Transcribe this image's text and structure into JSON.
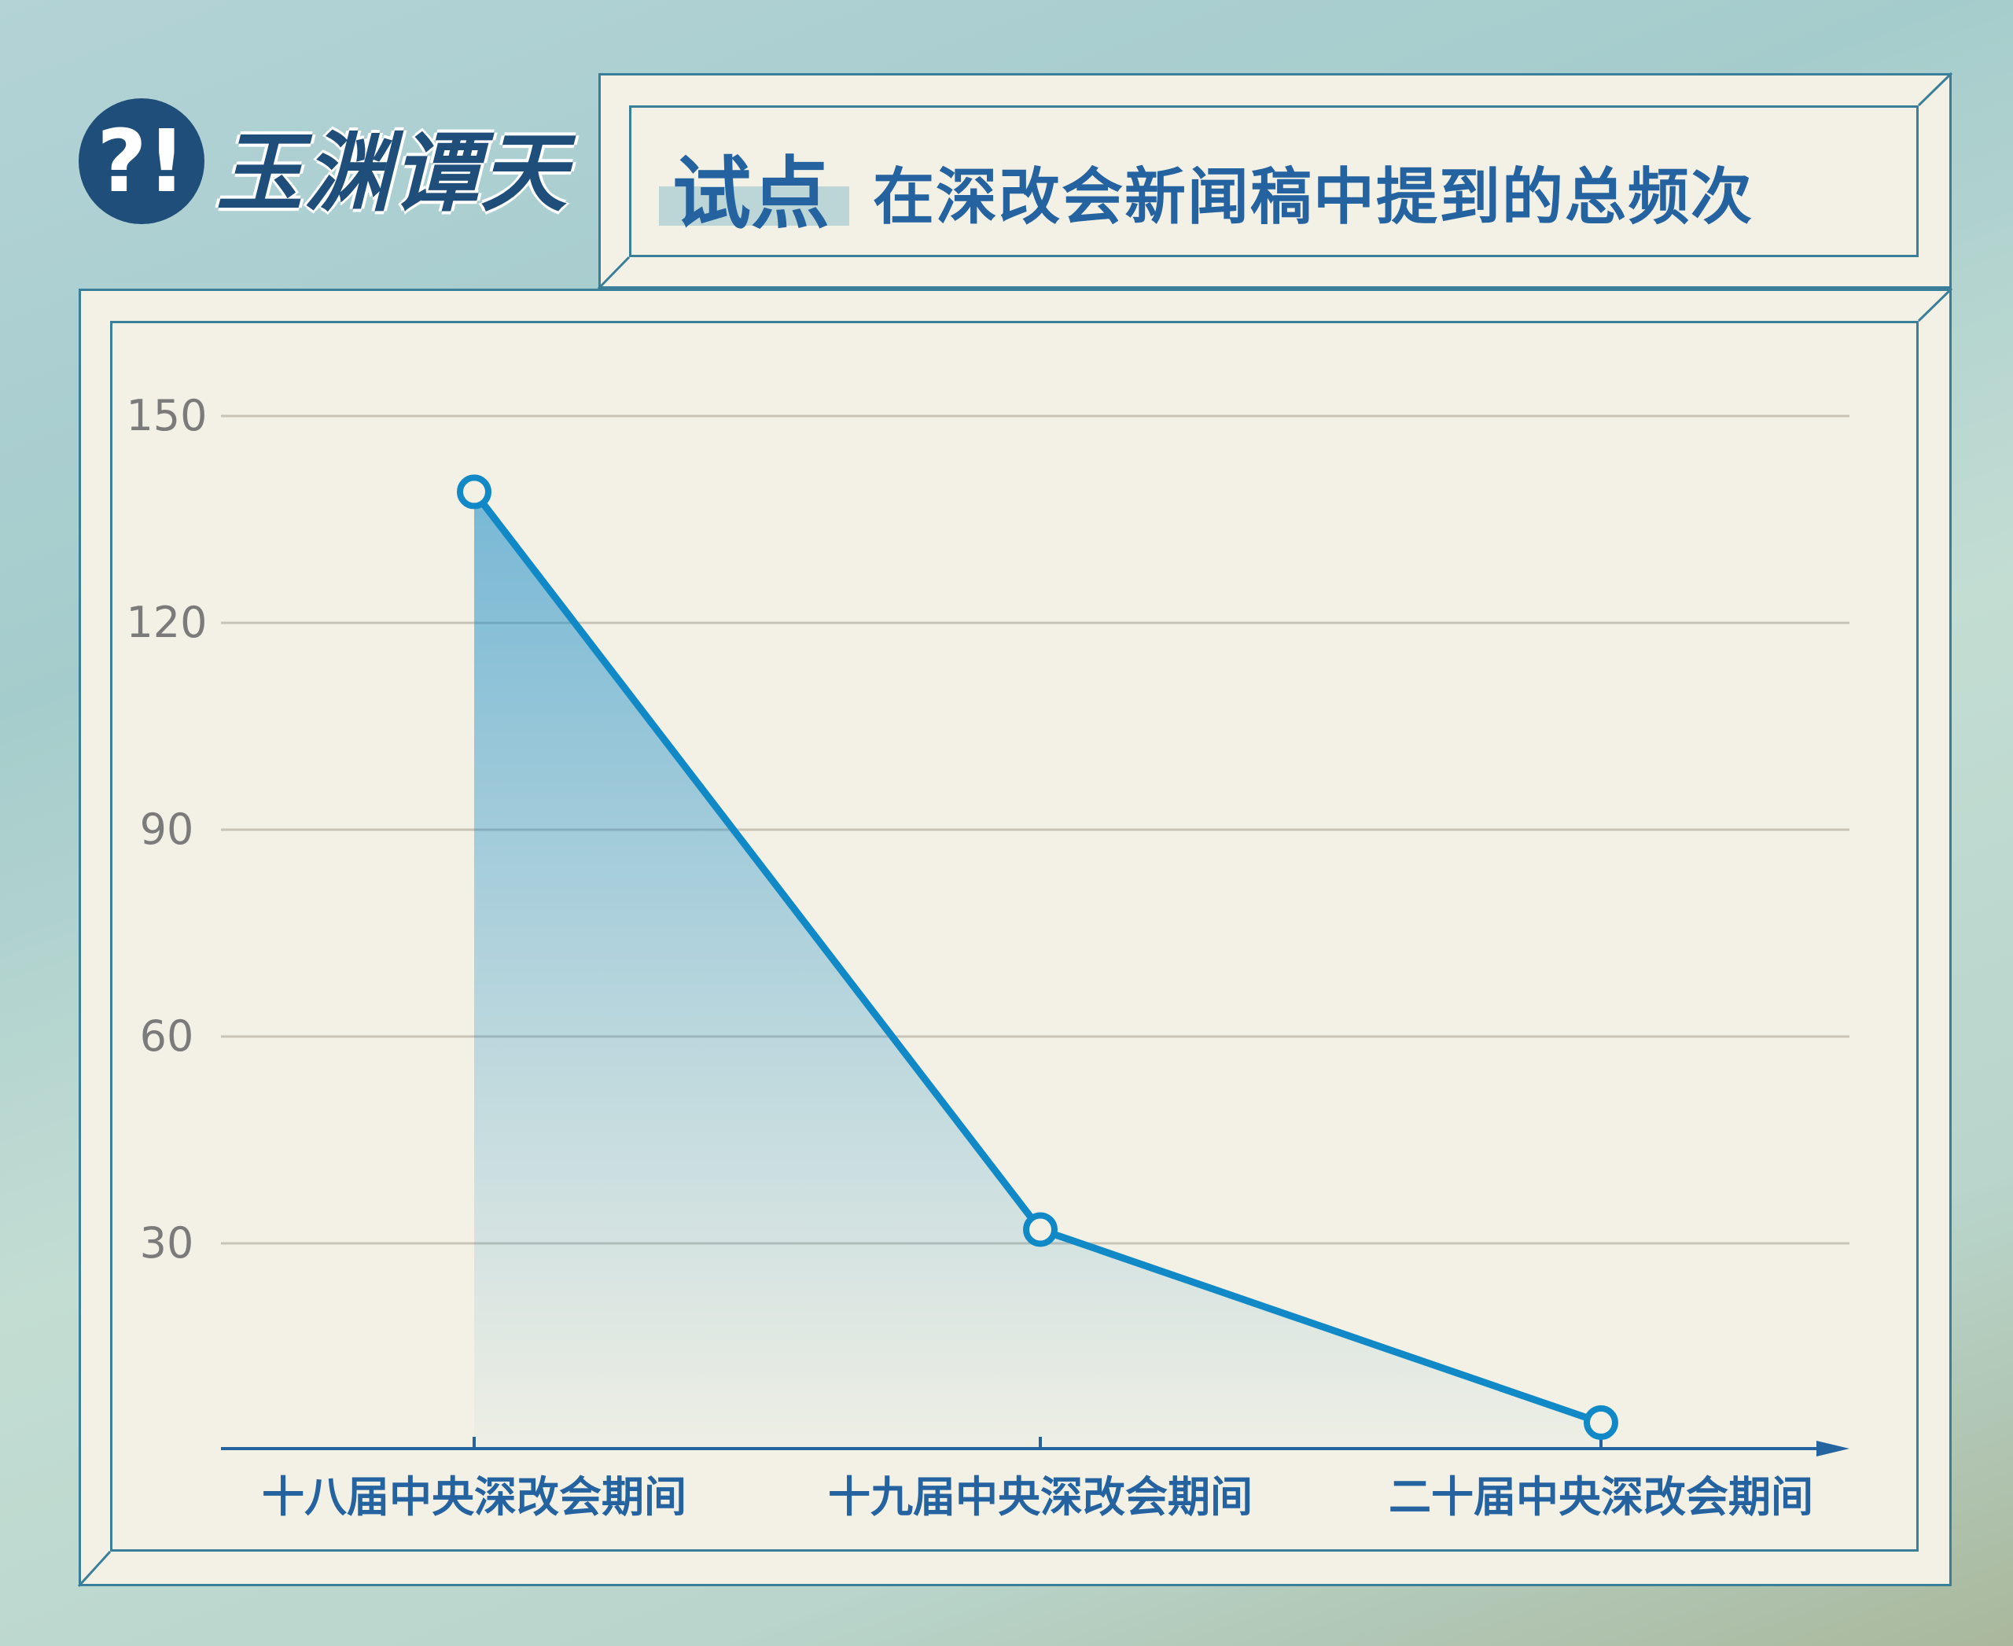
{
  "brand": {
    "name": "玉渊谭天"
  },
  "title": {
    "highlight": "试点",
    "text": "在深改会新闻稿中提到的总频次"
  },
  "colors": {
    "line": "#1289c7",
    "axis": "#2563a0",
    "grid": "#c8c4b8",
    "panel": "#f3f1e5",
    "title": "#2563a0"
  },
  "chart_data": {
    "type": "line",
    "area_fill": true,
    "title": "试点在深改会新闻稿中提到的总频次",
    "categories": [
      "十八届中央深改会期间",
      "十九届中央深改会期间",
      "二十届中央深改会期间"
    ],
    "values": [
      139,
      32,
      4
    ],
    "ylim": [
      0,
      150
    ],
    "yticks": [
      "30",
      "60",
      "90",
      "120",
      "150"
    ],
    "grid": true,
    "markers": "hollow-circle"
  }
}
